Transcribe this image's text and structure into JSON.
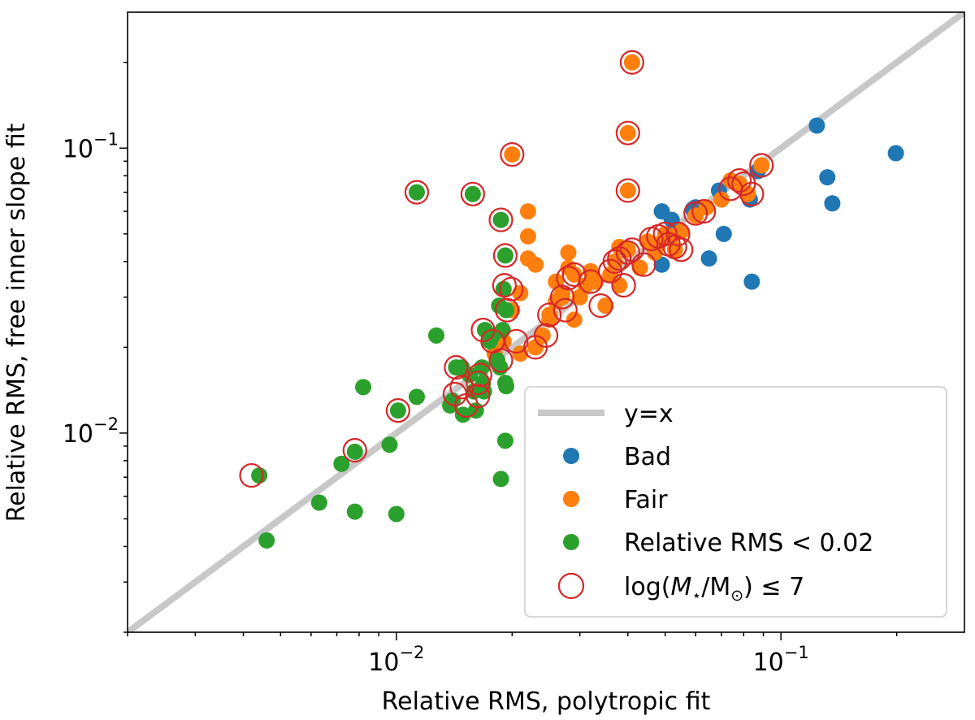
{
  "chart_data": {
    "type": "scatter",
    "xscale": "log",
    "yscale": "log",
    "xlabel": "Relative RMS, polytropic fit",
    "ylabel": "Relative RMS, free inner slope fit",
    "xlim": [
      0.002,
      0.3
    ],
    "ylim": [
      0.002,
      0.3
    ],
    "x_ticks": [
      {
        "value": 0.01,
        "base": "10",
        "exp": "−2"
      },
      {
        "value": 0.1,
        "base": "10",
        "exp": "−1"
      }
    ],
    "y_ticks": [
      {
        "value": 0.01,
        "base": "10",
        "exp": "−2"
      },
      {
        "value": 0.1,
        "base": "10",
        "exp": "−1"
      }
    ],
    "legend": {
      "position": "lower-right",
      "entries": [
        {
          "key": "yx",
          "label": "y=x"
        },
        {
          "key": "bad",
          "label": "Bad"
        },
        {
          "key": "fair",
          "label": "Fair"
        },
        {
          "key": "good",
          "label": "Relative RMS < 0.02"
        },
        {
          "key": "lowmass",
          "label_prefix": "log(",
          "label_m": "M",
          "label_star": "⋆",
          "label_mid": "/M",
          "label_sun": "⊙",
          "label_suffix": ") ≤ 7"
        }
      ]
    },
    "colors": {
      "bad": "#1f77b4",
      "fair": "#ff7f0e",
      "good": "#2ca02c",
      "lowmass": "#d62728",
      "yx": "#c8c8c8"
    },
    "series": [
      {
        "name": "y=x",
        "key": "yx",
        "kind": "line",
        "x": [
          0.002,
          0.3
        ],
        "y": [
          0.002,
          0.3
        ]
      },
      {
        "name": "Bad",
        "key": "bad",
        "kind": "points",
        "x": [
          0.124,
          0.199,
          0.132,
          0.136,
          0.049,
          0.052,
          0.059,
          0.069,
          0.083,
          0.087,
          0.071,
          0.065,
          0.084,
          0.049,
          0.035,
          0.06
        ],
        "y": [
          0.12,
          0.096,
          0.079,
          0.064,
          0.06,
          0.056,
          0.061,
          0.071,
          0.066,
          0.083,
          0.05,
          0.041,
          0.034,
          0.039,
          0.028,
          0.062
        ]
      },
      {
        "name": "Fair",
        "key": "fair",
        "kind": "points",
        "x": [
          0.041,
          0.02,
          0.04,
          0.04,
          0.022,
          0.022,
          0.023,
          0.022,
          0.028,
          0.028,
          0.026,
          0.021,
          0.029,
          0.027,
          0.031,
          0.032,
          0.033,
          0.035,
          0.037,
          0.036,
          0.038,
          0.038,
          0.04,
          0.043,
          0.045,
          0.048,
          0.05,
          0.052,
          0.053,
          0.055,
          0.047,
          0.06,
          0.064,
          0.07,
          0.074,
          0.078,
          0.082,
          0.089,
          0.025,
          0.024,
          0.026,
          0.02,
          0.019,
          0.018,
          0.021,
          0.03,
          0.029,
          0.023,
          0.025,
          0.027
        ],
        "y": [
          0.2,
          0.095,
          0.113,
          0.071,
          0.06,
          0.049,
          0.039,
          0.041,
          0.043,
          0.038,
          0.034,
          0.031,
          0.036,
          0.03,
          0.033,
          0.037,
          0.034,
          0.028,
          0.04,
          0.036,
          0.033,
          0.045,
          0.044,
          0.038,
          0.047,
          0.046,
          0.05,
          0.049,
          0.044,
          0.051,
          0.043,
          0.058,
          0.062,
          0.066,
          0.077,
          0.075,
          0.069,
          0.087,
          0.026,
          0.022,
          0.029,
          0.027,
          0.021,
          0.019,
          0.019,
          0.03,
          0.025,
          0.02,
          0.025,
          0.031
        ]
      },
      {
        "name": "Relative RMS < 0.02",
        "key": "good",
        "kind": "points",
        "x": [
          0.0113,
          0.0158,
          0.0187,
          0.0192,
          0.019,
          0.0193,
          0.0185,
          0.0189,
          0.0178,
          0.017,
          0.0175,
          0.0183,
          0.0186,
          0.0192,
          0.0167,
          0.0168,
          0.0169,
          0.0143,
          0.0148,
          0.0155,
          0.0159,
          0.014,
          0.0127,
          0.0113,
          0.0101,
          0.0096,
          0.0082,
          0.0078,
          0.0072,
          0.0063,
          0.0044,
          0.0046,
          0.0078,
          0.01,
          0.0187,
          0.0192,
          0.0193,
          0.0161,
          0.0149,
          0.0138
        ],
        "y": [
          0.07,
          0.069,
          0.056,
          0.042,
          0.032,
          0.027,
          0.028,
          0.023,
          0.022,
          0.023,
          0.021,
          0.018,
          0.017,
          0.015,
          0.017,
          0.015,
          0.014,
          0.017,
          0.017,
          0.016,
          0.014,
          0.013,
          0.022,
          0.0134,
          0.012,
          0.0091,
          0.0145,
          0.0086,
          0.0078,
          0.0057,
          0.0071,
          0.0042,
          0.0053,
          0.0052,
          0.0069,
          0.0094,
          0.0146,
          0.012,
          0.0116,
          0.0125
        ]
      },
      {
        "name": "log(M⋆/M⊙) ≤ 7",
        "key": "lowmass",
        "kind": "rings",
        "x": [
          0.041,
          0.04,
          0.02,
          0.04,
          0.0113,
          0.0158,
          0.0187,
          0.0192,
          0.0191,
          0.0199,
          0.0194,
          0.0178,
          0.0168,
          0.0165,
          0.0163,
          0.0143,
          0.0142,
          0.0152,
          0.0187,
          0.0205,
          0.023,
          0.0245,
          0.025,
          0.027,
          0.028,
          0.029,
          0.0275,
          0.032,
          0.034,
          0.036,
          0.037,
          0.038,
          0.039,
          0.04,
          0.041,
          0.044,
          0.046,
          0.048,
          0.05,
          0.051,
          0.053,
          0.054,
          0.055,
          0.06,
          0.063,
          0.074,
          0.078,
          0.08,
          0.084,
          0.089,
          0.0101,
          0.0078,
          0.0042,
          0.0148,
          0.0163
        ],
        "y": [
          0.2,
          0.113,
          0.095,
          0.071,
          0.07,
          0.069,
          0.056,
          0.042,
          0.033,
          0.032,
          0.027,
          0.021,
          0.023,
          0.016,
          0.015,
          0.017,
          0.0137,
          0.0125,
          0.018,
          0.021,
          0.02,
          0.022,
          0.026,
          0.03,
          0.035,
          0.036,
          0.027,
          0.034,
          0.028,
          0.037,
          0.04,
          0.041,
          0.033,
          0.043,
          0.044,
          0.039,
          0.048,
          0.049,
          0.05,
          0.046,
          0.045,
          0.05,
          0.044,
          0.059,
          0.06,
          0.072,
          0.077,
          0.075,
          0.069,
          0.087,
          0.012,
          0.0087,
          0.0071,
          0.0145,
          0.0135
        ]
      }
    ]
  }
}
